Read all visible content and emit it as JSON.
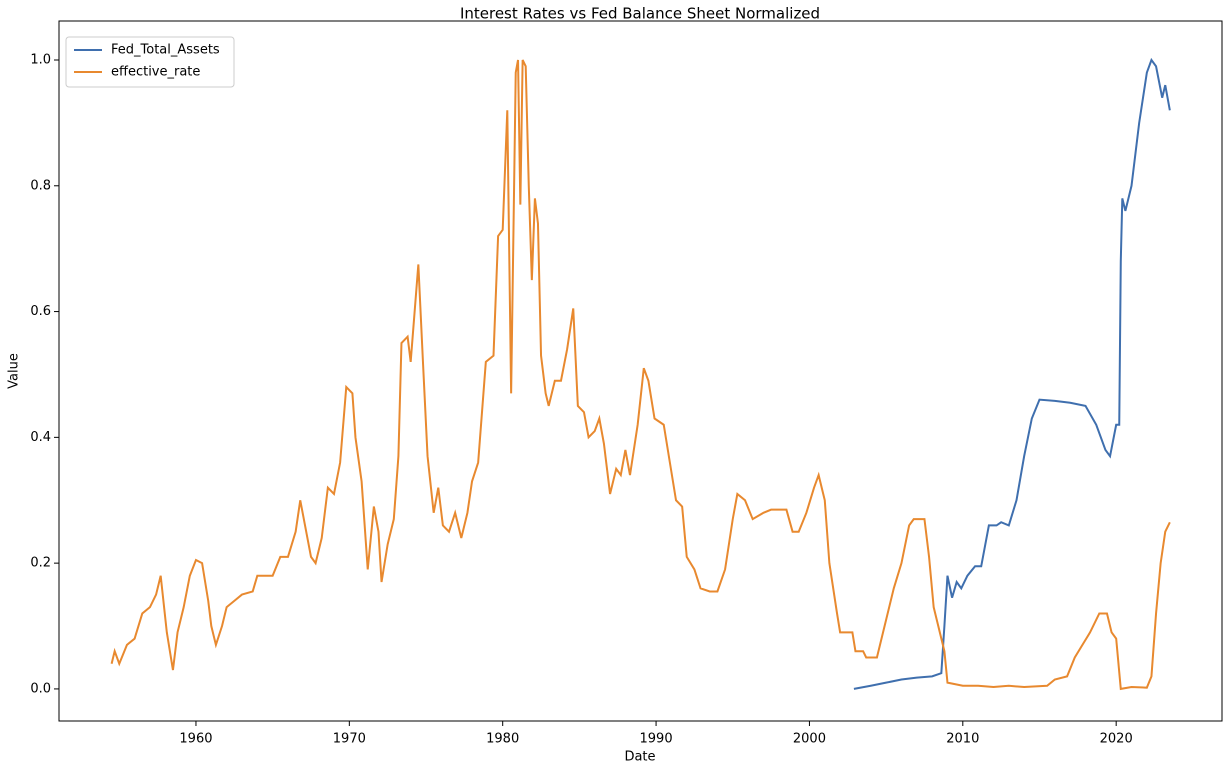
{
  "chart_data": {
    "type": "line",
    "title": "Interest Rates vs Fed Balance Sheet Normalized",
    "x_label": "Date",
    "y_label": "Value",
    "xlim": [
      1951.07,
      2026.9
    ],
    "ylim": [
      -0.051,
      1.062
    ],
    "xticks": [
      1960,
      1970,
      1980,
      1990,
      2000,
      2010,
      2020
    ],
    "yticks": [
      {
        "value": 0,
        "label": "0.0"
      },
      0.2,
      0.4,
      0.6,
      0.8,
      {
        "value": 1,
        "label": "1.0"
      }
    ],
    "legend": "upper left",
    "series": [
      {
        "name": "Fed_Total_Assets",
        "color": "#3f6fae",
        "x": [
          2002.9,
          2004,
          2005,
          2006,
          2007,
          2008,
          2008.6,
          2008.8,
          2009.0,
          2009.3,
          2009.6,
          2009.9,
          2010.3,
          2010.8,
          2011.2,
          2011.7,
          2012.2,
          2012.5,
          2013,
          2013.5,
          2014.0,
          2014.5,
          2015.0,
          2016,
          2017,
          2018,
          2018.7,
          2019.3,
          2019.6,
          2020.0,
          2020.2,
          2020.3,
          2020.4,
          2020.6,
          2021.0,
          2021.5,
          2022.0,
          2022.3,
          2022.6,
          2023.0,
          2023.2,
          2023.5
        ],
        "values": [
          0.0,
          0.005,
          0.01,
          0.015,
          0.018,
          0.02,
          0.025,
          0.1,
          0.18,
          0.145,
          0.17,
          0.16,
          0.18,
          0.195,
          0.195,
          0.26,
          0.26,
          0.265,
          0.26,
          0.3,
          0.37,
          0.43,
          0.46,
          0.458,
          0.455,
          0.45,
          0.42,
          0.38,
          0.37,
          0.42,
          0.42,
          0.68,
          0.78,
          0.76,
          0.8,
          0.9,
          0.98,
          1.0,
          0.99,
          0.94,
          0.96,
          0.92
        ]
      },
      {
        "name": "effective_rate",
        "color": "#e8892f",
        "x": [
          1954.5,
          1954.7,
          1955.0,
          1955.5,
          1956.0,
          1956.5,
          1957.0,
          1957.4,
          1957.7,
          1958.1,
          1958.5,
          1958.8,
          1959.2,
          1959.6,
          1960.0,
          1960.4,
          1960.8,
          1961.0,
          1961.3,
          1961.7,
          1962.0,
          1962.5,
          1963.0,
          1963.7,
          1964.0,
          1965.0,
          1965.5,
          1966.0,
          1966.5,
          1966.8,
          1967.5,
          1967.8,
          1968.2,
          1968.6,
          1969.0,
          1969.4,
          1969.7,
          1969.8,
          1970.2,
          1970.4,
          1970.8,
          1971.2,
          1971.6,
          1971.9,
          1972.1,
          1972.5,
          1972.9,
          1973.2,
          1973.4,
          1973.8,
          1974.0,
          1974.5,
          1974.8,
          1975.1,
          1975.5,
          1975.8,
          1976.1,
          1976.5,
          1976.9,
          1977.3,
          1977.7,
          1978.0,
          1978.4,
          1978.9,
          1979.4,
          1979.7,
          1980.0,
          1980.3,
          1980.55,
          1980.85,
          1981.0,
          1981.15,
          1981.3,
          1981.5,
          1981.7,
          1981.9,
          1982.1,
          1982.3,
          1982.5,
          1982.8,
          1983.0,
          1983.4,
          1983.8,
          1984.2,
          1984.6,
          1984.9,
          1985.3,
          1985.6,
          1986.0,
          1986.3,
          1986.6,
          1987.0,
          1987.4,
          1987.7,
          1988.0,
          1988.3,
          1988.8,
          1989.2,
          1989.5,
          1989.9,
          1990.5,
          1990.9,
          1991.3,
          1991.7,
          1992.0,
          1992.5,
          1992.9,
          1993.5,
          1994.0,
          1994.5,
          1995.0,
          1995.3,
          1995.8,
          1996.3,
          1997.0,
          1997.5,
          1998.5,
          1998.9,
          1999.3,
          1999.8,
          2000.3,
          2000.6,
          2001.0,
          2001.3,
          2001.8,
          2002.0,
          2002.8,
          2003.0,
          2003.5,
          2003.7,
          2004.4,
          2005.0,
          2005.5,
          2006.0,
          2006.5,
          2006.8,
          2007.5,
          2007.8,
          2008.1,
          2008.4,
          2008.8,
          2009.0,
          2010,
          2011,
          2012,
          2013,
          2014,
          2015.5,
          2016.0,
          2016.8,
          2017.3,
          2017.8,
          2018.3,
          2018.9,
          2019.4,
          2019.7,
          2020.0,
          2020.3,
          2021.0,
          2022.0,
          2022.3,
          2022.6,
          2022.9,
          2023.2,
          2023.5
        ],
        "values": [
          0.04,
          0.06,
          0.04,
          0.07,
          0.08,
          0.12,
          0.13,
          0.15,
          0.18,
          0.09,
          0.03,
          0.09,
          0.13,
          0.18,
          0.205,
          0.2,
          0.14,
          0.1,
          0.07,
          0.1,
          0.13,
          0.14,
          0.15,
          0.155,
          0.18,
          0.18,
          0.21,
          0.21,
          0.25,
          0.3,
          0.21,
          0.2,
          0.24,
          0.32,
          0.31,
          0.36,
          0.45,
          0.48,
          0.47,
          0.4,
          0.33,
          0.19,
          0.29,
          0.25,
          0.17,
          0.23,
          0.27,
          0.37,
          0.55,
          0.56,
          0.52,
          0.675,
          0.52,
          0.37,
          0.28,
          0.32,
          0.26,
          0.25,
          0.28,
          0.24,
          0.28,
          0.33,
          0.36,
          0.52,
          0.53,
          0.72,
          0.73,
          0.92,
          0.47,
          0.98,
          1.0,
          0.77,
          1.0,
          0.99,
          0.8,
          0.65,
          0.78,
          0.74,
          0.53,
          0.47,
          0.45,
          0.49,
          0.49,
          0.54,
          0.605,
          0.45,
          0.44,
          0.4,
          0.41,
          0.43,
          0.39,
          0.31,
          0.35,
          0.34,
          0.38,
          0.34,
          0.42,
          0.51,
          0.49,
          0.43,
          0.42,
          0.36,
          0.3,
          0.29,
          0.21,
          0.19,
          0.16,
          0.155,
          0.155,
          0.19,
          0.27,
          0.31,
          0.3,
          0.27,
          0.28,
          0.285,
          0.285,
          0.25,
          0.25,
          0.28,
          0.32,
          0.34,
          0.3,
          0.2,
          0.12,
          0.09,
          0.09,
          0.06,
          0.06,
          0.05,
          0.05,
          0.11,
          0.16,
          0.2,
          0.26,
          0.27,
          0.27,
          0.21,
          0.13,
          0.1,
          0.06,
          0.01,
          0.005,
          0.005,
          0.003,
          0.005,
          0.003,
          0.005,
          0.015,
          0.02,
          0.05,
          0.07,
          0.09,
          0.12,
          0.12,
          0.09,
          0.08,
          0.0,
          0.003,
          0.002,
          0.02,
          0.12,
          0.2,
          0.25,
          0.265
        ]
      }
    ]
  }
}
